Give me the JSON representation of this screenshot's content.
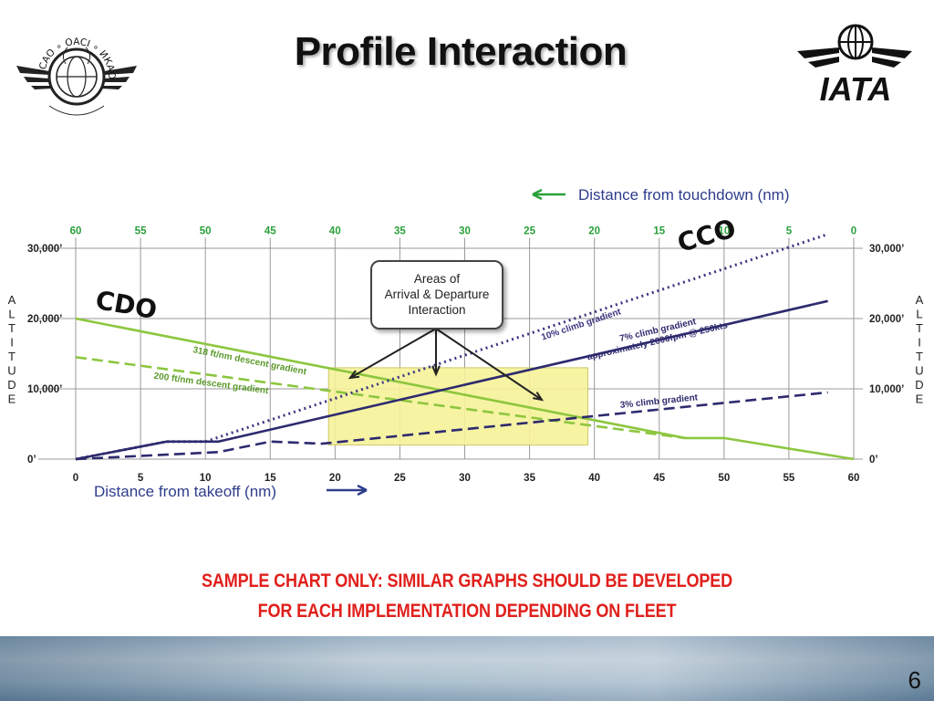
{
  "slide": {
    "title": "Profile Interaction",
    "page_number": "6",
    "note_line1": "SAMPLE CHART ONLY: SIMILAR GRAPHS SHOULD BE DEVELOPED",
    "note_line2": "FOR EACH IMPLEMENTATION DEPENDING ON FLEET",
    "icao_logo": {
      "text": "ICAO ∘ OACI ∘ ИКАО",
      "icon": "icao-emblem"
    },
    "iata_logo": {
      "text": "IATA",
      "icon": "iata-globe"
    },
    "colors": {
      "note": "#e0201c",
      "green": "#8dc63f",
      "navy": "#2e2a6e",
      "highlight": "#f6f29a"
    }
  },
  "chart_data": {
    "type": "line",
    "top_axis": {
      "label": "Distance from touchdown (nm)",
      "ticks": [
        "60",
        "55",
        "50",
        "45",
        "40",
        "35",
        "30",
        "25",
        "20",
        "15",
        "10",
        "5",
        "0"
      ],
      "color": "#2aa03a"
    },
    "bottom_axis": {
      "label": "Distance from takeoff (nm)",
      "ticks": [
        "0",
        "5",
        "10",
        "15",
        "20",
        "25",
        "30",
        "35",
        "40",
        "45",
        "50",
        "55",
        "60"
      ],
      "range": [
        0,
        60
      ]
    },
    "y_axis": {
      "label_left": "ALTITUDE",
      "label_right": "ALTITUDE",
      "ticks": [
        "0’",
        "10,000’",
        "20,000’",
        "30,000’"
      ],
      "range": [
        0,
        30000
      ]
    },
    "grid": true,
    "series": [
      {
        "name": "318 ft/nm descent gradient",
        "style": "solid",
        "color": "#8dc63f",
        "points": [
          [
            0,
            20000
          ],
          [
            47,
            3000
          ],
          [
            50,
            3000
          ],
          [
            60,
            0
          ]
        ]
      },
      {
        "name": "200 ft/nm descent gradient",
        "style": "dashed",
        "color": "#8dc63f",
        "points": [
          [
            0,
            14500
          ],
          [
            47,
            3000
          ]
        ]
      },
      {
        "name": "10% climb gradient",
        "style": "dotted",
        "color": "#3a3580",
        "points": [
          [
            0,
            0
          ],
          [
            7,
            2500
          ],
          [
            10,
            2500
          ],
          [
            58,
            32000
          ]
        ]
      },
      {
        "name": "7% climb gradient approximately 2000fpm @ 250kts",
        "style": "solid",
        "color": "#2e2a6e",
        "points": [
          [
            0,
            0
          ],
          [
            7,
            2500
          ],
          [
            11,
            2500
          ],
          [
            58,
            22500
          ]
        ]
      },
      {
        "name": "3% climb gradient",
        "style": "dashed",
        "color": "#2e2a6e",
        "points": [
          [
            0,
            0
          ],
          [
            11,
            1000
          ],
          [
            15,
            2500
          ],
          [
            19,
            2200
          ],
          [
            58,
            9500
          ]
        ]
      }
    ],
    "highlight_region": {
      "x": [
        19.5,
        39.5
      ],
      "y": [
        2000,
        13000
      ]
    },
    "annotations": {
      "cdo": "CDO",
      "cco": "CCO",
      "callout": "Areas of\nArrival & Departure\nInteraction"
    }
  }
}
